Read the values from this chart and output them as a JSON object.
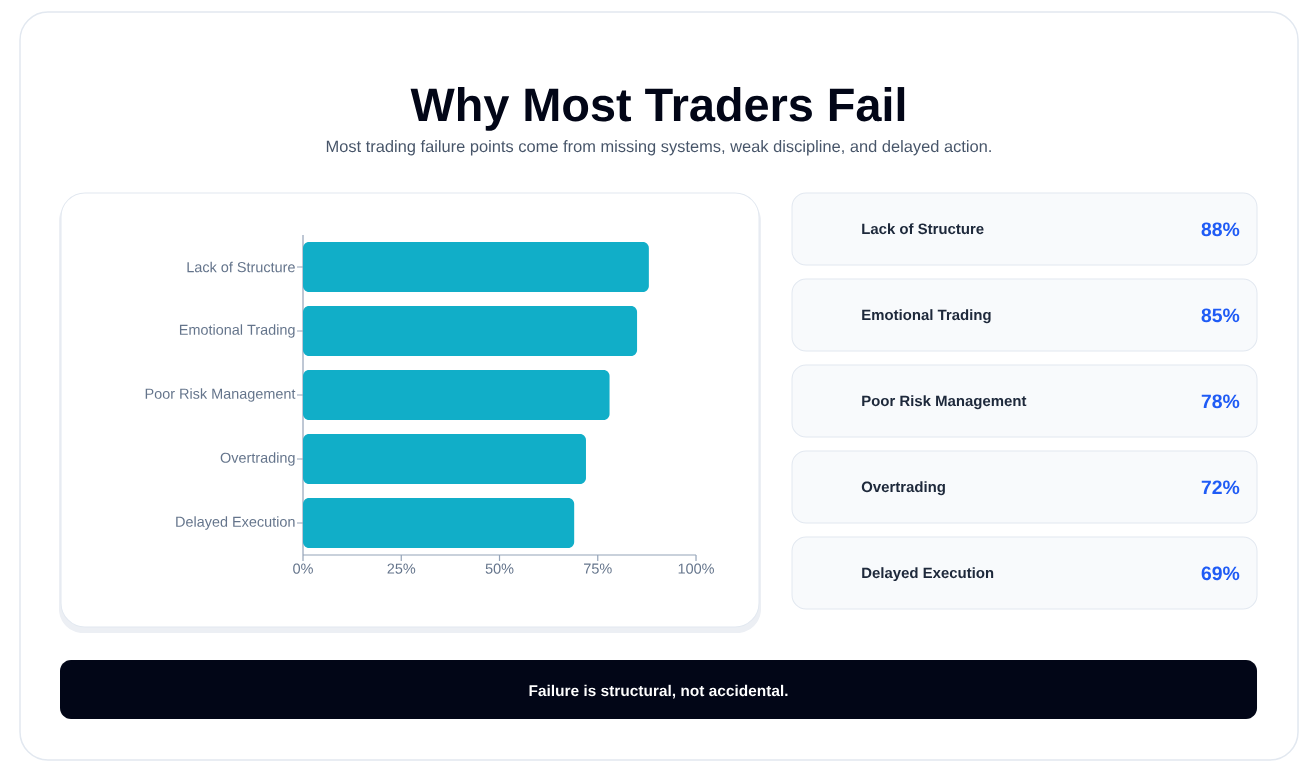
{
  "chart_data": [
    {
      "type": "bar",
      "orientation": "horizontal",
      "title": "Why Most Traders Fail",
      "subtitle": "Most trading failure points come from missing systems, weak discipline, and delayed action.",
      "categories": [
        "Lack of Structure",
        "Emotional Trading",
        "Poor Risk Management",
        "Overtrading",
        "Delayed Execution"
      ],
      "values": [
        88,
        85,
        78,
        72,
        69
      ],
      "color": "#11aec8",
      "xlim": [
        0,
        100
      ],
      "xticks": [
        {
          "value": 0,
          "label": "0%"
        },
        {
          "value": 25,
          "label": "25%"
        },
        {
          "value": 50,
          "label": "50%"
        },
        {
          "value": 75,
          "label": "75%"
        },
        {
          "value": 100,
          "label": "100%"
        }
      ],
      "annotations": [
        "Failure is structural, not accidental."
      ]
    },
    {
      "type": "other",
      "annotations": [
        "Lack of Structure",
        "88%",
        "Emotional Trading",
        "85%",
        "Poor Risk Management",
        "78%",
        "Overtrading",
        "72%",
        "Delayed Execution",
        "69%"
      ]
    }
  ]
}
